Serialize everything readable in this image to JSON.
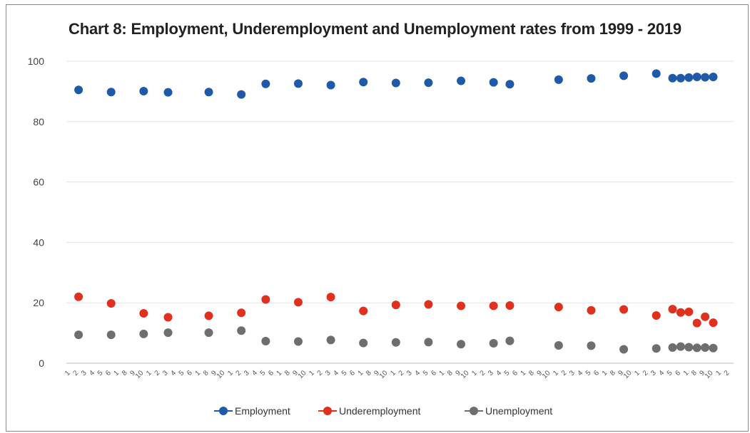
{
  "chart_data": {
    "type": "scatter",
    "title": "Chart 8: Employment, Underemployment and Unemployment rates from 1999 - 2019",
    "xlabel": "",
    "ylabel": "",
    "ylim": [
      0,
      100
    ],
    "yticks": [
      0,
      20,
      40,
      60,
      80,
      100
    ],
    "grid": "horizontal",
    "legend": "bottom",
    "x": [
      1,
      5,
      9,
      12,
      17,
      21,
      24,
      28,
      32,
      36,
      40,
      44,
      48,
      52,
      54,
      60,
      64,
      68,
      72,
      74,
      75,
      76,
      77,
      78,
      79
    ],
    "x_tick_labels": [
      "1",
      "2",
      "3",
      "4",
      "5",
      "6",
      "1",
      "8",
      "9",
      "10",
      "1",
      "2",
      "3",
      "4",
      "5",
      "6",
      "1",
      "8",
      "9",
      "10",
      "1",
      "2",
      "3",
      "4",
      "5",
      "6",
      "1",
      "8",
      "9",
      "10",
      "1",
      "2",
      "3",
      "4",
      "5",
      "6",
      "1",
      "8",
      "9",
      "10",
      "1",
      "2",
      "3",
      "4",
      "5",
      "6",
      "1",
      "8",
      "9",
      "10",
      "1",
      "2",
      "3",
      "4",
      "5",
      "6",
      "1",
      "8",
      "9",
      "10",
      "1",
      "2",
      "3",
      "4",
      "5",
      "6",
      "1",
      "8",
      "9",
      "10",
      "1",
      "2",
      "3",
      "4",
      "5",
      "6",
      "1",
      "8",
      "9",
      "10",
      "1",
      "2"
    ],
    "series": [
      {
        "name": "Employment",
        "color": "#1f5aa8",
        "values": [
          90.5,
          89.8,
          90.1,
          89.7,
          89.8,
          89.0,
          92.5,
          92.6,
          92.1,
          93.1,
          92.8,
          92.9,
          93.5,
          93.0,
          92.4,
          93.9,
          94.3,
          95.2,
          95.9,
          94.4,
          94.4,
          94.6,
          94.8,
          94.7,
          94.8
        ]
      },
      {
        "name": "Underemployment",
        "color": "#e0301e",
        "values": [
          22.0,
          19.8,
          16.5,
          15.2,
          15.7,
          16.7,
          21.1,
          20.2,
          21.9,
          17.3,
          19.3,
          19.5,
          19.0,
          19.0,
          19.1,
          18.6,
          17.5,
          17.8,
          15.8,
          17.9,
          16.8,
          17.0,
          13.3,
          15.4,
          13.4
        ]
      },
      {
        "name": "Unemployment",
        "color": "#6e6e6e",
        "values": [
          9.4,
          9.4,
          9.7,
          10.1,
          10.1,
          10.8,
          7.3,
          7.2,
          7.7,
          6.7,
          6.9,
          7.0,
          6.3,
          6.6,
          7.4,
          5.9,
          5.8,
          4.6,
          4.9,
          5.2,
          5.5,
          5.3,
          5.1,
          5.2,
          5.0
        ]
      }
    ]
  }
}
